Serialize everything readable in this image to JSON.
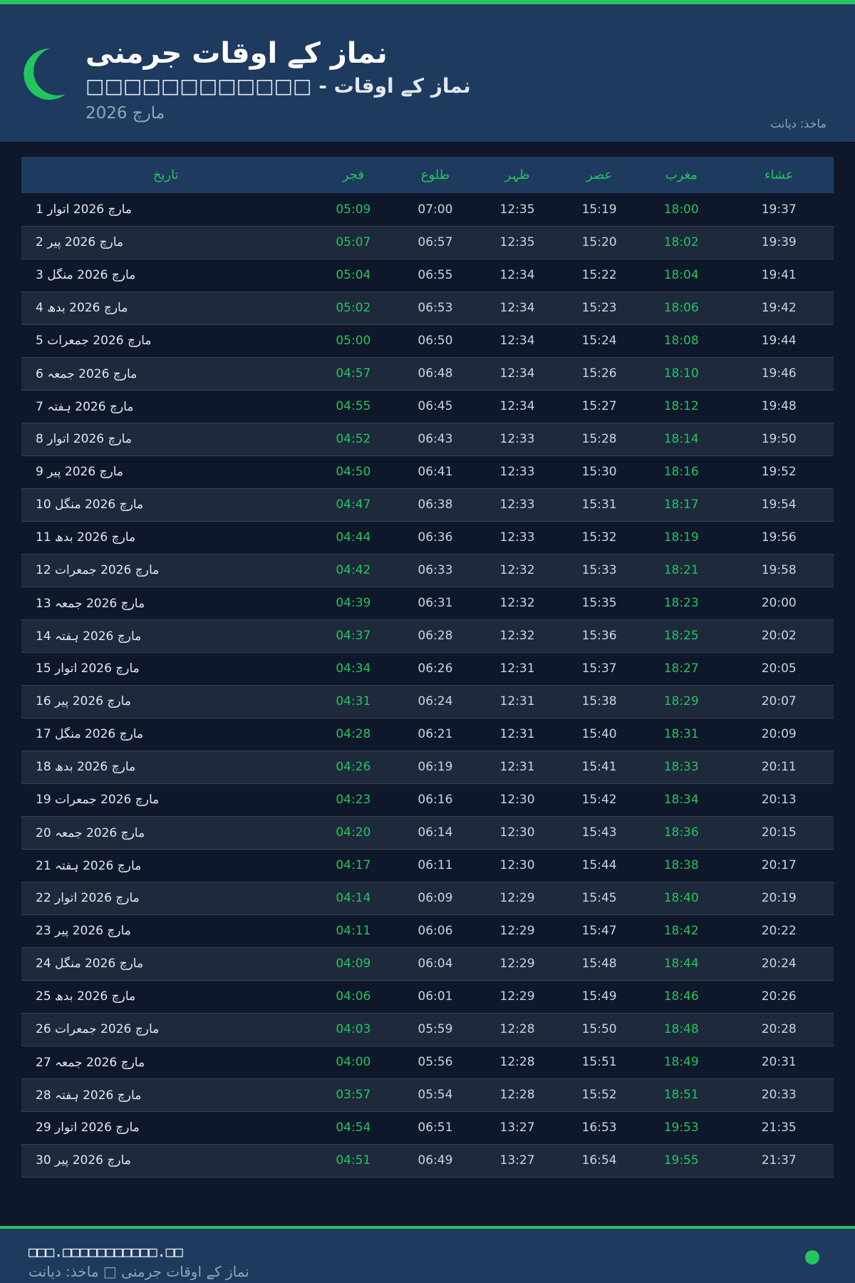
{
  "header": {
    "title": "نماز کے اوقات جرمنی",
    "subtitle": "□□□□□□□□□□□□ - نماز کے اوقات",
    "month": "مارچ 2026",
    "source": "ماخذ: دیانت",
    "icon": "crescent-moon-icon"
  },
  "colors": {
    "accent": "#22c55e",
    "header": "#1e3a5f",
    "background": "#0f172a"
  },
  "table": {
    "columns": [
      "تاریخ",
      "فجر",
      "طلوع",
      "ظہر",
      "عصر",
      "مغرب",
      "عشاء"
    ],
    "rows": [
      [
        "1 مارچ 2026 اتوار",
        "05:09",
        "07:00",
        "12:35",
        "15:19",
        "18:00",
        "19:37"
      ],
      [
        "2 مارچ 2026 پیر",
        "05:07",
        "06:57",
        "12:35",
        "15:20",
        "18:02",
        "19:39"
      ],
      [
        "3 مارچ 2026 منگل",
        "05:04",
        "06:55",
        "12:34",
        "15:22",
        "18:04",
        "19:41"
      ],
      [
        "4 مارچ 2026 بدھ",
        "05:02",
        "06:53",
        "12:34",
        "15:23",
        "18:06",
        "19:42"
      ],
      [
        "5 مارچ 2026 جمعرات",
        "05:00",
        "06:50",
        "12:34",
        "15:24",
        "18:08",
        "19:44"
      ],
      [
        "6 مارچ 2026 جمعہ",
        "04:57",
        "06:48",
        "12:34",
        "15:26",
        "18:10",
        "19:46"
      ],
      [
        "7 مارچ 2026 ہفتہ",
        "04:55",
        "06:45",
        "12:34",
        "15:27",
        "18:12",
        "19:48"
      ],
      [
        "8 مارچ 2026 اتوار",
        "04:52",
        "06:43",
        "12:33",
        "15:28",
        "18:14",
        "19:50"
      ],
      [
        "9 مارچ 2026 پیر",
        "04:50",
        "06:41",
        "12:33",
        "15:30",
        "18:16",
        "19:52"
      ],
      [
        "10 مارچ 2026 منگل",
        "04:47",
        "06:38",
        "12:33",
        "15:31",
        "18:17",
        "19:54"
      ],
      [
        "11 مارچ 2026 بدھ",
        "04:44",
        "06:36",
        "12:33",
        "15:32",
        "18:19",
        "19:56"
      ],
      [
        "12 مارچ 2026 جمعرات",
        "04:42",
        "06:33",
        "12:32",
        "15:33",
        "18:21",
        "19:58"
      ],
      [
        "13 مارچ 2026 جمعہ",
        "04:39",
        "06:31",
        "12:32",
        "15:35",
        "18:23",
        "20:00"
      ],
      [
        "14 مارچ 2026 ہفتہ",
        "04:37",
        "06:28",
        "12:32",
        "15:36",
        "18:25",
        "20:02"
      ],
      [
        "15 مارچ 2026 اتوار",
        "04:34",
        "06:26",
        "12:31",
        "15:37",
        "18:27",
        "20:05"
      ],
      [
        "16 مارچ 2026 پیر",
        "04:31",
        "06:24",
        "12:31",
        "15:38",
        "18:29",
        "20:07"
      ],
      [
        "17 مارچ 2026 منگل",
        "04:28",
        "06:21",
        "12:31",
        "15:40",
        "18:31",
        "20:09"
      ],
      [
        "18 مارچ 2026 بدھ",
        "04:26",
        "06:19",
        "12:31",
        "15:41",
        "18:33",
        "20:11"
      ],
      [
        "19 مارچ 2026 جمعرات",
        "04:23",
        "06:16",
        "12:30",
        "15:42",
        "18:34",
        "20:13"
      ],
      [
        "20 مارچ 2026 جمعہ",
        "04:20",
        "06:14",
        "12:30",
        "15:43",
        "18:36",
        "20:15"
      ],
      [
        "21 مارچ 2026 ہفتہ",
        "04:17",
        "06:11",
        "12:30",
        "15:44",
        "18:38",
        "20:17"
      ],
      [
        "22 مارچ 2026 اتوار",
        "04:14",
        "06:09",
        "12:29",
        "15:45",
        "18:40",
        "20:19"
      ],
      [
        "23 مارچ 2026 پیر",
        "04:11",
        "06:06",
        "12:29",
        "15:47",
        "18:42",
        "20:22"
      ],
      [
        "24 مارچ 2026 منگل",
        "04:09",
        "06:04",
        "12:29",
        "15:48",
        "18:44",
        "20:24"
      ],
      [
        "25 مارچ 2026 بدھ",
        "04:06",
        "06:01",
        "12:29",
        "15:49",
        "18:46",
        "20:26"
      ],
      [
        "26 مارچ 2026 جمعرات",
        "04:03",
        "05:59",
        "12:28",
        "15:50",
        "18:48",
        "20:28"
      ],
      [
        "27 مارچ 2026 جمعہ",
        "04:00",
        "05:56",
        "12:28",
        "15:51",
        "18:49",
        "20:31"
      ],
      [
        "28 مارچ 2026 ہفتہ",
        "03:57",
        "05:54",
        "12:28",
        "15:52",
        "18:51",
        "20:33"
      ],
      [
        "29 مارچ 2026 اتوار",
        "04:54",
        "06:51",
        "13:27",
        "16:53",
        "19:53",
        "21:35"
      ],
      [
        "30 مارچ 2026 پیر",
        "04:51",
        "06:49",
        "13:27",
        "16:54",
        "19:55",
        "21:37"
      ]
    ]
  },
  "footer": {
    "url": "□□□.□□□□□□□□□□□.□□",
    "text": "نماز کے اوقات جرمنی □ ماخذ: دیانت"
  }
}
